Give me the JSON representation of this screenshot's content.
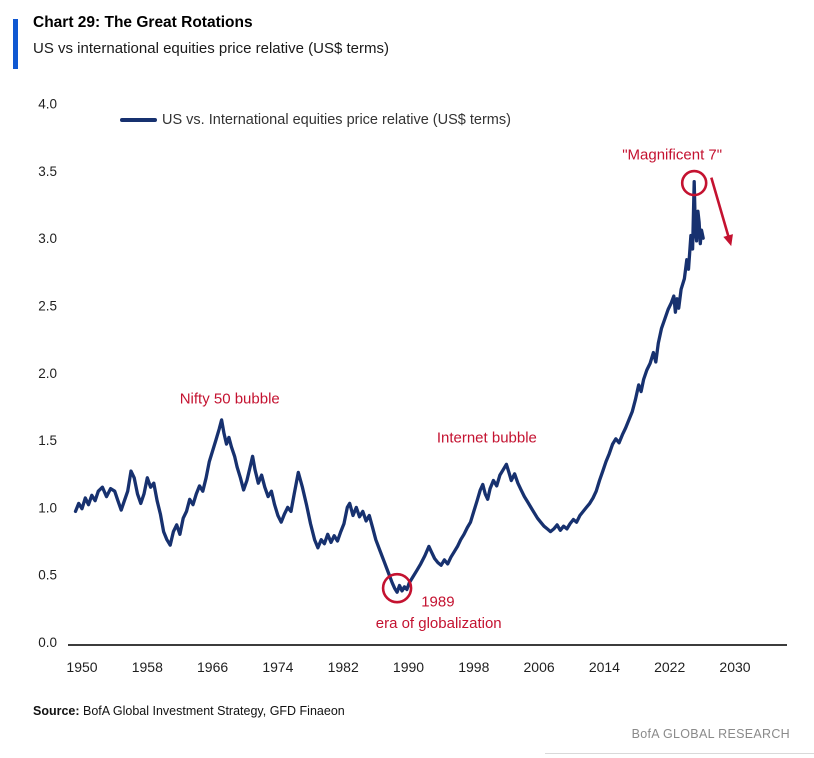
{
  "header": {
    "title": "Chart 29: The Great Rotations",
    "subtitle": "US vs international equities price relative (US$ terms)"
  },
  "legend": {
    "label": "US vs. International equities price relative (US$ terms)"
  },
  "footer": {
    "source_label": "Source:",
    "source_text": " BofA Global Investment Strategy, GFD Finaeon",
    "brand": "BofA GLOBAL RESEARCH"
  },
  "colors": {
    "accent": "#1058d2",
    "line": "#17316f",
    "annotation": "#c41230",
    "axis": "#3c3c3c",
    "tick_text": "#1f1f1f"
  },
  "chart_data": {
    "type": "line",
    "title": "Chart 29: The Great Rotations",
    "subtitle": "US vs international equities price relative (US$ terms)",
    "xlabel": "",
    "ylabel": "",
    "x_ticks": [
      1950,
      1958,
      1966,
      1974,
      1982,
      1990,
      1998,
      2006,
      2014,
      2022,
      2030
    ],
    "y_ticks": [
      0.0,
      0.5,
      1.0,
      1.5,
      2.0,
      2.5,
      3.0,
      3.5,
      4.0
    ],
    "xlim": [
      1948.5,
      2036
    ],
    "ylim": [
      0.0,
      4.0
    ],
    "grid": false,
    "legend_position": "top-left",
    "series": [
      {
        "name": "US vs. International equities price relative (US$ terms)",
        "points": [
          [
            1949.2,
            0.97
          ],
          [
            1949.6,
            1.03
          ],
          [
            1950,
            0.99
          ],
          [
            1950.4,
            1.07
          ],
          [
            1950.8,
            1.02
          ],
          [
            1951.2,
            1.09
          ],
          [
            1951.6,
            1.05
          ],
          [
            1952,
            1.12
          ],
          [
            1952.5,
            1.15
          ],
          [
            1953,
            1.08
          ],
          [
            1953.5,
            1.14
          ],
          [
            1954,
            1.12
          ],
          [
            1954.4,
            1.05
          ],
          [
            1954.8,
            0.98
          ],
          [
            1955.2,
            1.05
          ],
          [
            1955.6,
            1.12
          ],
          [
            1956,
            1.27
          ],
          [
            1956.4,
            1.22
          ],
          [
            1956.8,
            1.1
          ],
          [
            1957.2,
            1.03
          ],
          [
            1957.6,
            1.1
          ],
          [
            1958,
            1.22
          ],
          [
            1958.4,
            1.15
          ],
          [
            1958.8,
            1.18
          ],
          [
            1959.2,
            1.05
          ],
          [
            1959.6,
            0.95
          ],
          [
            1960,
            0.82
          ],
          [
            1960.4,
            0.76
          ],
          [
            1960.8,
            0.72
          ],
          [
            1961.2,
            0.82
          ],
          [
            1961.6,
            0.87
          ],
          [
            1962,
            0.8
          ],
          [
            1962.4,
            0.92
          ],
          [
            1962.8,
            0.97
          ],
          [
            1963.2,
            1.06
          ],
          [
            1963.6,
            1.02
          ],
          [
            1964,
            1.1
          ],
          [
            1964.4,
            1.16
          ],
          [
            1964.8,
            1.12
          ],
          [
            1965.2,
            1.22
          ],
          [
            1965.6,
            1.34
          ],
          [
            1966,
            1.42
          ],
          [
            1966.4,
            1.5
          ],
          [
            1966.8,
            1.58
          ],
          [
            1967.1,
            1.65
          ],
          [
            1967.4,
            1.55
          ],
          [
            1967.7,
            1.47
          ],
          [
            1968,
            1.52
          ],
          [
            1968.3,
            1.45
          ],
          [
            1968.7,
            1.38
          ],
          [
            1969,
            1.3
          ],
          [
            1969.4,
            1.22
          ],
          [
            1969.8,
            1.13
          ],
          [
            1970.2,
            1.2
          ],
          [
            1970.6,
            1.3
          ],
          [
            1970.9,
            1.38
          ],
          [
            1971.2,
            1.28
          ],
          [
            1971.6,
            1.18
          ],
          [
            1972,
            1.24
          ],
          [
            1972.4,
            1.15
          ],
          [
            1972.8,
            1.08
          ],
          [
            1973.2,
            1.12
          ],
          [
            1973.6,
            1.02
          ],
          [
            1974,
            0.94
          ],
          [
            1974.4,
            0.89
          ],
          [
            1974.8,
            0.95
          ],
          [
            1975.2,
            1.0
          ],
          [
            1975.6,
            0.97
          ],
          [
            1976,
            1.1
          ],
          [
            1976.5,
            1.26
          ],
          [
            1977,
            1.15
          ],
          [
            1977.5,
            1.02
          ],
          [
            1978,
            0.88
          ],
          [
            1978.5,
            0.76
          ],
          [
            1978.9,
            0.7
          ],
          [
            1979.3,
            0.76
          ],
          [
            1979.7,
            0.73
          ],
          [
            1980.1,
            0.8
          ],
          [
            1980.5,
            0.74
          ],
          [
            1980.9,
            0.79
          ],
          [
            1981.3,
            0.75
          ],
          [
            1981.7,
            0.82
          ],
          [
            1982.1,
            0.88
          ],
          [
            1982.5,
            1.0
          ],
          [
            1982.8,
            1.03
          ],
          [
            1983.2,
            0.94
          ],
          [
            1983.6,
            1.0
          ],
          [
            1984,
            0.93
          ],
          [
            1984.4,
            0.97
          ],
          [
            1984.8,
            0.9
          ],
          [
            1985.2,
            0.94
          ],
          [
            1985.6,
            0.85
          ],
          [
            1986,
            0.76
          ],
          [
            1986.5,
            0.68
          ],
          [
            1987,
            0.6
          ],
          [
            1987.5,
            0.52
          ],
          [
            1988,
            0.44
          ],
          [
            1988.3,
            0.4
          ],
          [
            1988.6,
            0.37
          ],
          [
            1988.9,
            0.42
          ],
          [
            1989.2,
            0.38
          ],
          [
            1989.5,
            0.41
          ],
          [
            1989.8,
            0.39
          ],
          [
            1990.1,
            0.44
          ],
          [
            1990.5,
            0.48
          ],
          [
            1991,
            0.53
          ],
          [
            1991.5,
            0.58
          ],
          [
            1992,
            0.64
          ],
          [
            1992.5,
            0.71
          ],
          [
            1992.8,
            0.67
          ],
          [
            1993.2,
            0.62
          ],
          [
            1993.6,
            0.59
          ],
          [
            1994,
            0.57
          ],
          [
            1994.4,
            0.61
          ],
          [
            1994.8,
            0.58
          ],
          [
            1995.2,
            0.63
          ],
          [
            1995.6,
            0.67
          ],
          [
            1996,
            0.71
          ],
          [
            1996.4,
            0.76
          ],
          [
            1996.8,
            0.8
          ],
          [
            1997.2,
            0.85
          ],
          [
            1997.6,
            0.89
          ],
          [
            1998,
            0.97
          ],
          [
            1998.4,
            1.05
          ],
          [
            1998.8,
            1.13
          ],
          [
            1999.1,
            1.17
          ],
          [
            1999.4,
            1.1
          ],
          [
            1999.7,
            1.06
          ],
          [
            2000,
            1.14
          ],
          [
            2000.4,
            1.2
          ],
          [
            2000.8,
            1.16
          ],
          [
            2001.2,
            1.24
          ],
          [
            2001.6,
            1.28
          ],
          [
            2002,
            1.32
          ],
          [
            2002.3,
            1.26
          ],
          [
            2002.6,
            1.2
          ],
          [
            2003,
            1.25
          ],
          [
            2003.4,
            1.18
          ],
          [
            2003.8,
            1.13
          ],
          [
            2004.2,
            1.08
          ],
          [
            2004.6,
            1.04
          ],
          [
            2005,
            1.0
          ],
          [
            2005.4,
            0.96
          ],
          [
            2005.8,
            0.92
          ],
          [
            2006.2,
            0.89
          ],
          [
            2006.6,
            0.86
          ],
          [
            2007,
            0.84
          ],
          [
            2007.4,
            0.82
          ],
          [
            2007.8,
            0.84
          ],
          [
            2008.2,
            0.87
          ],
          [
            2008.6,
            0.83
          ],
          [
            2009,
            0.86
          ],
          [
            2009.4,
            0.84
          ],
          [
            2009.8,
            0.88
          ],
          [
            2010.2,
            0.91
          ],
          [
            2010.6,
            0.89
          ],
          [
            2011,
            0.94
          ],
          [
            2011.4,
            0.97
          ],
          [
            2011.8,
            1.0
          ],
          [
            2012.2,
            1.03
          ],
          [
            2012.6,
            1.07
          ],
          [
            2013,
            1.12
          ],
          [
            2013.4,
            1.2
          ],
          [
            2013.8,
            1.27
          ],
          [
            2014.2,
            1.34
          ],
          [
            2014.6,
            1.4
          ],
          [
            2015,
            1.47
          ],
          [
            2015.4,
            1.51
          ],
          [
            2015.8,
            1.48
          ],
          [
            2016.2,
            1.54
          ],
          [
            2016.6,
            1.59
          ],
          [
            2017,
            1.65
          ],
          [
            2017.4,
            1.71
          ],
          [
            2017.8,
            1.8
          ],
          [
            2018.2,
            1.91
          ],
          [
            2018.5,
            1.86
          ],
          [
            2018.8,
            1.95
          ],
          [
            2019.2,
            2.02
          ],
          [
            2019.6,
            2.07
          ],
          [
            2020,
            2.15
          ],
          [
            2020.3,
            2.08
          ],
          [
            2020.6,
            2.22
          ],
          [
            2021,
            2.33
          ],
          [
            2021.4,
            2.4
          ],
          [
            2021.8,
            2.47
          ],
          [
            2022.2,
            2.52
          ],
          [
            2022.5,
            2.57
          ],
          [
            2022.7,
            2.45
          ],
          [
            2022.9,
            2.55
          ],
          [
            2023.1,
            2.48
          ],
          [
            2023.4,
            2.62
          ],
          [
            2023.8,
            2.7
          ],
          [
            2024.1,
            2.84
          ],
          [
            2024.3,
            2.77
          ],
          [
            2024.6,
            3.02
          ],
          [
            2024.8,
            2.92
          ],
          [
            2025.0,
            3.42
          ],
          [
            2025.15,
            3.05
          ],
          [
            2025.3,
            2.98
          ],
          [
            2025.45,
            3.2
          ],
          [
            2025.6,
            3.12
          ],
          [
            2025.75,
            2.96
          ],
          [
            2025.9,
            3.06
          ],
          [
            2026.1,
            3.0
          ]
        ]
      }
    ],
    "annotations": [
      {
        "shape": "text",
        "text": "Nifty 50 bubble",
        "x": 1968.1,
        "y": 1.81
      },
      {
        "shape": "text",
        "text": "Internet bubble",
        "x": 1999.6,
        "y": 1.52
      },
      {
        "shape": "text",
        "text": "1989",
        "x": 1993.6,
        "y": 0.3
      },
      {
        "shape": "text",
        "text": "era of globalization",
        "x": 1993.7,
        "y": 0.14
      },
      {
        "shape": "text",
        "text": "\"Magnificent 7\"",
        "x": 2022.3,
        "y": 3.62
      },
      {
        "shape": "circle",
        "x": 1988.6,
        "y": 0.4,
        "r": 14
      },
      {
        "shape": "circle",
        "x": 2025.0,
        "y": 3.41,
        "r": 12
      },
      {
        "shape": "arrow",
        "x1": 2027.1,
        "y1": 3.45,
        "x2": 2029.4,
        "y2": 2.97
      }
    ]
  }
}
